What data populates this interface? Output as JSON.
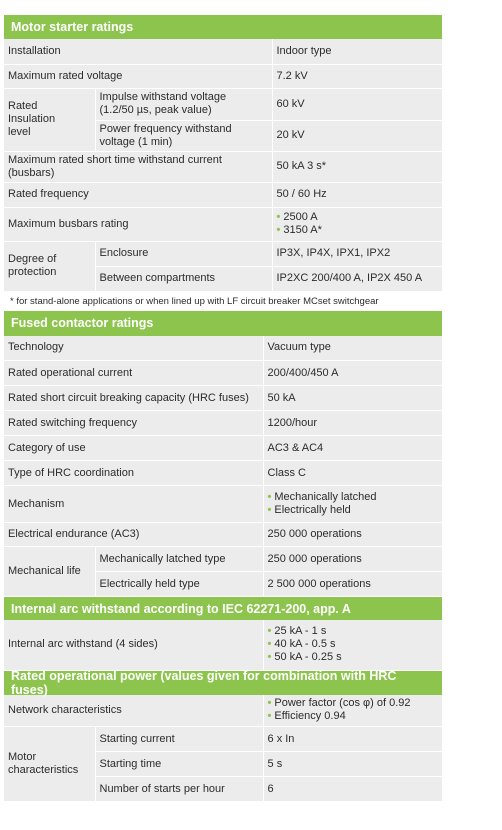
{
  "motor": {
    "title": "Motor starter ratings",
    "installation": {
      "label": "Installation",
      "value": "Indoor type"
    },
    "max_voltage": {
      "label": "Maximum rated voltage",
      "value": "7.2 kV"
    },
    "insulation": {
      "group_label_1": "Rated",
      "group_label_2": "Insulation",
      "group_label_3": "level",
      "impulse_label_1": "Impulse withstand voltage",
      "impulse_label_2": "(1.2/50 µs, peak value)",
      "impulse_value": "60 kV",
      "power_label_1": "Power frequency withstand",
      "power_label_2": "voltage (1 min)",
      "power_value": "20 kV"
    },
    "short_time": {
      "label_1": "Maximum rated short time withstand current",
      "label_2": "(busbars)",
      "value": "50 kA 3 s*"
    },
    "frequency": {
      "label": "Rated frequency",
      "value": "50 / 60 Hz"
    },
    "busbars": {
      "label": "Maximum busbars rating",
      "value_1": "2500 A",
      "value_2": "3150 A*"
    },
    "protection": {
      "group_label_1": "Degree of",
      "group_label_2": "protection",
      "enclosure_label": "Enclosure",
      "enclosure_value": "IP3X, IP4X, IPX1, IPX2",
      "compartments_label": "Between compartments",
      "compartments_value": "IP2XC 200/400 A, IP2X 450 A"
    },
    "footnote": "* for stand-alone applications or when lined up with LF circuit breaker MCset switchgear"
  },
  "fused": {
    "title": "Fused contactor ratings",
    "technology": {
      "label": "Technology",
      "value": "Vacuum type"
    },
    "op_current": {
      "label": "Rated operational current",
      "value": "200/400/450 A"
    },
    "breaking": {
      "label": "Rated short circuit breaking capacity (HRC fuses)",
      "value": "50 kA"
    },
    "switching": {
      "label": "Rated switching frequency",
      "value": "1200/hour"
    },
    "category": {
      "label": "Category of use",
      "value": "AC3 & AC4"
    },
    "coordination": {
      "label": "Type of HRC coordination",
      "value": "Class C"
    },
    "mechanism": {
      "label": "Mechanism",
      "value_1": "Mechanically latched",
      "value_2": "Electrically held"
    },
    "endurance": {
      "label": "Electrical endurance (AC3)",
      "value": "250 000 operations"
    },
    "mech_life": {
      "group_label": "Mechanical life",
      "latched_label": "Mechanically latched type",
      "latched_value": "250 000 operations",
      "held_label": "Electrically held type",
      "held_value": "2 500 000 operations"
    }
  },
  "arc": {
    "title": "Internal arc withstand according to IEC 62271-200, app. A",
    "label": "Internal arc withstand (4 sides)",
    "values": [
      "25 kA - 1 s",
      "40 kA - 0.5 s",
      "50 kA - 0.25 s"
    ]
  },
  "power": {
    "title": "Rated operational power (values given for combination with HRC fuses)",
    "network": {
      "label": "Network characteristics",
      "value_1": "Power factor (cos φ) of 0.92",
      "value_2": "Efficiency 0.94"
    },
    "motor": {
      "group_label_1": "Motor",
      "group_label_2": "characteristics",
      "starting_current_label": "Starting current",
      "starting_current_value": "6 x In",
      "starting_time_label": "Starting time",
      "starting_time_value": "5 s",
      "starts_label": "Number of starts per hour",
      "starts_value": "6"
    }
  },
  "bullet": "•",
  "colors": {
    "header": "#8dc44e",
    "cell": "#ececec",
    "text": "#2b2b2b"
  }
}
